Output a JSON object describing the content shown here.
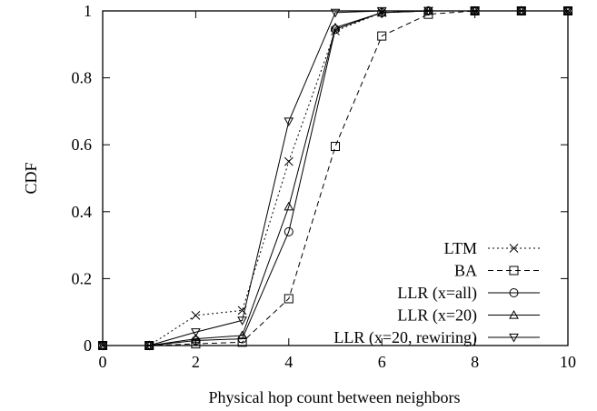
{
  "chart_data": {
    "type": "line",
    "xlabel": "Physical hop count between neighbors",
    "ylabel": "CDF",
    "xlim": [
      0,
      10
    ],
    "ylim": [
      0,
      1
    ],
    "x_ticks": [
      "0",
      "2",
      "4",
      "6",
      "8",
      "10"
    ],
    "y_ticks": [
      "0",
      "0.2",
      "0.4",
      "0.6",
      "0.8",
      "1"
    ],
    "legend_position": "bottom-right",
    "grid": false,
    "x": [
      0,
      1,
      2,
      3,
      4,
      5,
      6,
      7,
      8,
      9,
      10
    ],
    "series": [
      {
        "name": "LTM",
        "marker": "x",
        "dash": "dotted",
        "values": [
          0,
          0,
          0.09,
          0.105,
          0.55,
          0.94,
          0.995,
          1,
          1,
          1,
          1
        ]
      },
      {
        "name": "BA",
        "marker": "square",
        "dash": "dashed",
        "values": [
          0,
          0,
          0.005,
          0.01,
          0.14,
          0.595,
          0.925,
          0.99,
          1,
          1,
          1
        ]
      },
      {
        "name": "LLR (x=all)",
        "marker": "circle",
        "dash": "solid",
        "values": [
          0,
          0,
          0.015,
          0.02,
          0.34,
          0.945,
          0.995,
          1,
          1,
          1,
          1
        ]
      },
      {
        "name": "LLR (x=20)",
        "marker": "triangle-up",
        "dash": "solid",
        "values": [
          0,
          0,
          0.02,
          0.03,
          0.415,
          0.95,
          0.995,
          1,
          1,
          1,
          1
        ]
      },
      {
        "name": "LLR (x=20, rewiring)",
        "marker": "triangle-down",
        "dash": "solid",
        "values": [
          0,
          0,
          0.04,
          0.075,
          0.67,
          0.995,
          1,
          1,
          1,
          1,
          1
        ]
      }
    ]
  }
}
